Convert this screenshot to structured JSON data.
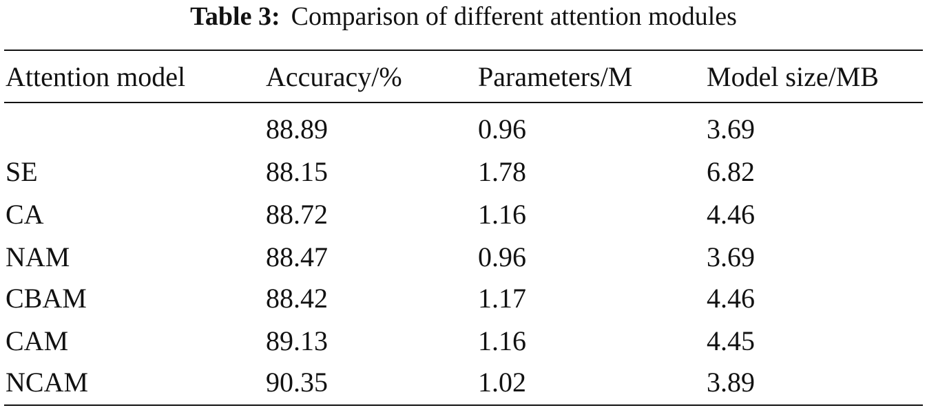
{
  "caption": {
    "label": "Table 3:",
    "text": "Comparison of different attention modules"
  },
  "table": {
    "headers": [
      "Attention model",
      "Accuracy/%",
      "Parameters/M",
      "Model size/MB"
    ],
    "rows": [
      [
        "",
        "88.89",
        "0.96",
        "3.69"
      ],
      [
        "SE",
        "88.15",
        "1.78",
        "6.82"
      ],
      [
        "CA",
        "88.72",
        "1.16",
        "4.46"
      ],
      [
        "NAM",
        "88.47",
        "0.96",
        "3.69"
      ],
      [
        "CBAM",
        "88.42",
        "1.17",
        "4.46"
      ],
      [
        "CAM",
        "89.13",
        "1.16",
        "4.45"
      ],
      [
        "NCAM",
        "90.35",
        "1.02",
        "3.89"
      ]
    ]
  }
}
